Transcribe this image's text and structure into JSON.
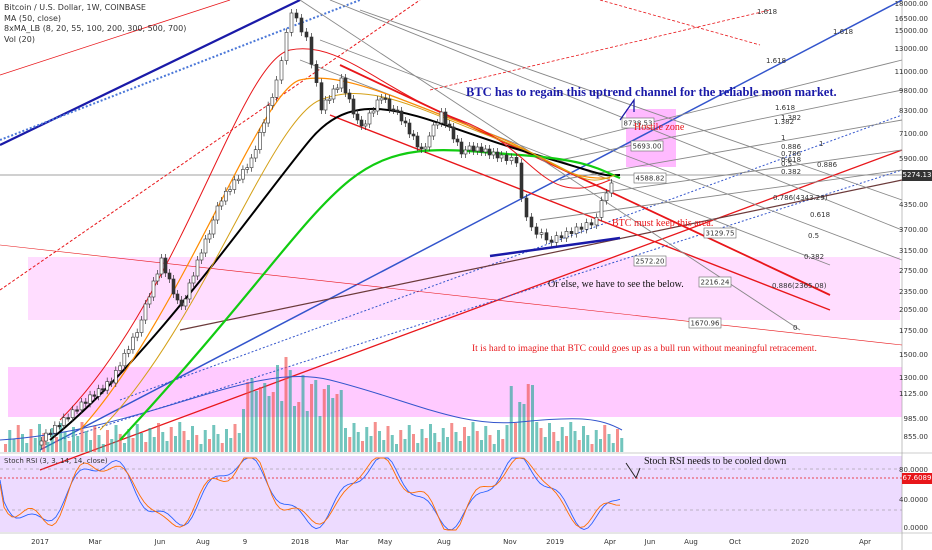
{
  "legend": {
    "title": "Bitcoin / U.S. Dollar, 1W, COINBASE",
    "ma": "MA (50, close)",
    "xma": "8xMA_LB (8, 20, 55, 100, 200, 300, 500, 700)",
    "vol": "Vol (20)",
    "stoch": "Stoch RSI (3, 3, 14, 14, close)"
  },
  "annotations": {
    "headline": "BTC has to regain this uptrend channel for the reliable moon market.",
    "hostile": "Hostile zone",
    "keep": "BTC must keep this area.",
    "orelse": "Or else, we have to see the below.",
    "hard": "It is hard to imagine that BTC could goes up as a bull run without meaningful retracement.",
    "stoch_note": "Stoch RSI needs to be cooled down"
  },
  "price_boxes": [
    "8738.53",
    "5693.00",
    "4588.82",
    "3129.75",
    "2572.20",
    "2216.24",
    "1670.96"
  ],
  "fib_labels": [
    "1.618",
    "1.618",
    "1.618",
    "1.382",
    "1",
    "0.886",
    "0.786",
    "0.618",
    "0.5",
    "0.382",
    "0.786(4343.29)",
    "0.618",
    "0.5",
    "0.382",
    "0.886(2365.08)",
    "0",
    "0.886",
    "1.618",
    "1.382",
    "1"
  ],
  "current_price": "5274.13",
  "stoch_value": "67.6089",
  "colors": {
    "up": "#26a69a",
    "down": "#ef5350",
    "candle": "#333333",
    "zone": "#ff66ff",
    "annotation_red": "#e8161a",
    "annotation_blue": "#1a1aa8",
    "stoch_bg": "#e6ccff"
  },
  "chart_data": {
    "type": "candlestick",
    "title": "Bitcoin / U.S. Dollar, 1W, COINBASE",
    "y_scale": "log",
    "price_ticks": [
      "18000.00",
      "16500.00",
      "15000.00",
      "13000.00",
      "11000.00",
      "9800.00",
      "8300.00",
      "7100.00",
      "5900.00",
      "5274.13",
      "4350.00",
      "3700.00",
      "3150.00",
      "2750.00",
      "2350.00",
      "2050.00",
      "1750.00",
      "1500.00",
      "1300.00",
      "1125.00",
      "985.00",
      "855.00"
    ],
    "x_ticks": [
      "2017",
      "Mar",
      "Jun",
      "Aug",
      "9",
      "2018",
      "Mar",
      "May",
      "Aug",
      "Nov",
      "2019",
      "Apr",
      "Jun",
      "Aug",
      "Oct",
      "2020",
      "Apr"
    ],
    "stoch_ticks": [
      "80.0000",
      "67.6089",
      "40.0000",
      "0.0000"
    ],
    "stoch_levels": {
      "upper": 80,
      "lower": 20,
      "value": 67.6089
    },
    "series": [
      {
        "name": "MA (50, close)",
        "role": "moving-average"
      },
      {
        "name": "Vol (20)",
        "role": "volume"
      },
      {
        "name": "Stoch RSI (3, 3, 14, 14, close)",
        "role": "oscillator"
      }
    ]
  }
}
